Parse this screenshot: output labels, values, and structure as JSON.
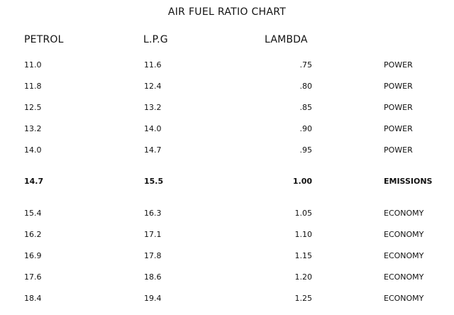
{
  "chart_data": {
    "type": "table",
    "title": "AIR FUEL RATIO CHART",
    "columns": [
      "PETROL",
      "L.P.G",
      "LAMBDA",
      ""
    ],
    "rows": [
      {
        "petrol": "11.0",
        "lpg": "11.6",
        "lambda": ".75",
        "note": "POWER",
        "bold": false
      },
      {
        "petrol": "11.8",
        "lpg": "12.4",
        "lambda": ".80",
        "note": "POWER",
        "bold": false
      },
      {
        "petrol": "12.5",
        "lpg": "13.2",
        "lambda": ".85",
        "note": "POWER",
        "bold": false
      },
      {
        "petrol": "13.2",
        "lpg": "14.0",
        "lambda": ".90",
        "note": "POWER",
        "bold": false
      },
      {
        "petrol": "14.0",
        "lpg": "14.7",
        "lambda": ".95",
        "note": "POWER",
        "bold": false
      },
      {
        "petrol": "14.7",
        "lpg": "15.5",
        "lambda": "1.00",
        "note": "EMISSIONS",
        "bold": true
      },
      {
        "petrol": "15.4",
        "lpg": "16.3",
        "lambda": "1.05",
        "note": "ECONOMY",
        "bold": false
      },
      {
        "petrol": "16.2",
        "lpg": "17.1",
        "lambda": "1.10",
        "note": "ECONOMY",
        "bold": false
      },
      {
        "petrol": "16.9",
        "lpg": "17.8",
        "lambda": "1.15",
        "note": "ECONOMY",
        "bold": false
      },
      {
        "petrol": "17.6",
        "lpg": "18.6",
        "lambda": "1.20",
        "note": "ECONOMY",
        "bold": false
      },
      {
        "petrol": "18.4",
        "lpg": "19.4",
        "lambda": "1.25",
        "note": "ECONOMY",
        "bold": false
      }
    ]
  }
}
